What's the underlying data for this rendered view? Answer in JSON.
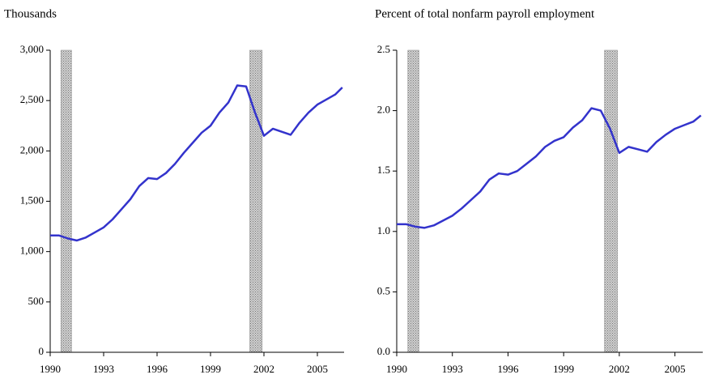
{
  "chart_data": [
    {
      "type": "line",
      "title": "Thousands",
      "x": [
        1990,
        1990.5,
        1991,
        1991.5,
        1992,
        1992.5,
        1993,
        1993.5,
        1994,
        1994.5,
        1995,
        1995.5,
        1996,
        1996.5,
        1997,
        1997.5,
        1998,
        1998.5,
        1999,
        1999.5,
        2000,
        2000.5,
        2001,
        2001.5,
        2002,
        2002.5,
        2003,
        2003.5,
        2004,
        2004.5,
        2005,
        2005.5,
        2006,
        2006.4
      ],
      "values": [
        1160,
        1160,
        1130,
        1110,
        1140,
        1190,
        1240,
        1320,
        1420,
        1520,
        1650,
        1730,
        1720,
        1780,
        1870,
        1980,
        2080,
        2180,
        2250,
        2380,
        2480,
        2650,
        2640,
        2380,
        2150,
        2220,
        2190,
        2160,
        2280,
        2380,
        2460,
        2510,
        2560,
        2630
      ],
      "color": "#3333cc",
      "shaded_ranges": [
        [
          1990.6,
          1991.2
        ],
        [
          2001.2,
          2001.9
        ]
      ],
      "xlim": [
        1990,
        2006.5
      ],
      "xticks": [
        1990,
        1993,
        1996,
        1999,
        2002,
        2005
      ],
      "ylim": [
        0,
        3000
      ],
      "yticks": [
        0,
        500,
        {
          "value": 1000,
          "label": "1,000"
        },
        {
          "value": 1500,
          "label": "1,500"
        },
        {
          "value": 2000,
          "label": "2,000"
        },
        {
          "value": 2500,
          "label": "2,500"
        },
        {
          "value": 3000,
          "label": "3,000"
        }
      ]
    },
    {
      "type": "line",
      "title": "Percent of total nonfarm payroll employment",
      "x": [
        1990,
        1990.5,
        1991,
        1991.5,
        1992,
        1992.5,
        1993,
        1993.5,
        1994,
        1994.5,
        1995,
        1995.5,
        1996,
        1996.5,
        1997,
        1997.5,
        1998,
        1998.5,
        1999,
        1999.5,
        2000,
        2000.5,
        2001,
        2001.5,
        2002,
        2002.5,
        2003,
        2003.5,
        2004,
        2004.5,
        2005,
        2005.5,
        2006,
        2006.4
      ],
      "values": [
        1.06,
        1.06,
        1.04,
        1.03,
        1.05,
        1.09,
        1.13,
        1.19,
        1.26,
        1.33,
        1.43,
        1.48,
        1.47,
        1.5,
        1.56,
        1.62,
        1.7,
        1.75,
        1.78,
        1.86,
        1.92,
        2.02,
        2.0,
        1.85,
        1.65,
        1.7,
        1.68,
        1.66,
        1.74,
        1.8,
        1.85,
        1.88,
        1.91,
        1.96
      ],
      "color": "#3333cc",
      "shaded_ranges": [
        [
          1990.6,
          1991.2
        ],
        [
          2001.2,
          2001.9
        ]
      ],
      "xlim": [
        1990,
        2006.5
      ],
      "xticks": [
        1990,
        1993,
        1996,
        1999,
        2002,
        2005
      ],
      "ylim": [
        0,
        2.5
      ],
      "yticks": [
        {
          "value": 0,
          "label": "0.0"
        },
        0.5,
        {
          "value": 1,
          "label": "1.0"
        },
        1.5,
        {
          "value": 2,
          "label": "2.0"
        },
        2.5
      ]
    }
  ]
}
